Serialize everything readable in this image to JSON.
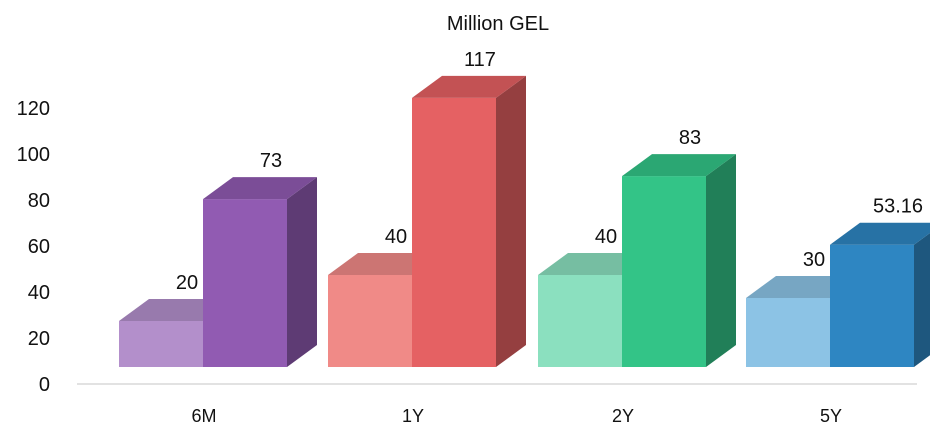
{
  "chart_data": {
    "type": "bar",
    "title": "Million GEL",
    "categories": [
      "6M",
      "1Y",
      "2Y",
      "5Y"
    ],
    "series": [
      {
        "values": [
          20,
          40,
          40,
          30
        ]
      },
      {
        "values": [
          73,
          117,
          83,
          53.16
        ]
      }
    ],
    "value_labels": [
      [
        "20",
        "40",
        "40",
        "30"
      ],
      [
        "73",
        "117",
        "83",
        "53.16"
      ]
    ],
    "y_ticks": [
      "0",
      "20",
      "40",
      "60",
      "80",
      "100",
      "120"
    ],
    "ylim": [
      0,
      120
    ],
    "grid": false,
    "legend": "none",
    "colors": {
      "category_light": [
        "#b38fcb",
        "#f08a87",
        "#8be0bf",
        "#8cc3e5"
      ],
      "category_dark": [
        "#915bb2",
        "#e56163",
        "#33c487",
        "#2e86c2"
      ]
    }
  }
}
